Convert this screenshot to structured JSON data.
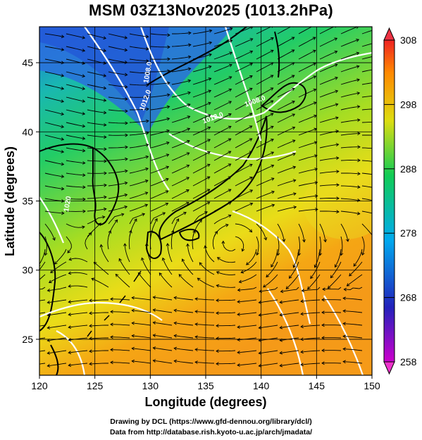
{
  "title": "MSM 03Z13Nov2025 (1013.2hPa)",
  "x_axis": {
    "label": "Longitude (degrees)",
    "ticks": [
      "120",
      "125",
      "130",
      "135",
      "140",
      "145",
      "150"
    ],
    "range": [
      120,
      150
    ]
  },
  "y_axis": {
    "label": "Latitude  (degrees)",
    "ticks": [
      "25",
      "30",
      "35",
      "40",
      "45"
    ],
    "range": [
      22.4,
      47.6
    ]
  },
  "colorbar": {
    "ticks": [
      "258",
      "268",
      "278",
      "288",
      "298",
      "308"
    ],
    "range": [
      258,
      308
    ],
    "colors": [
      "#cc00cc",
      "#1a1acc",
      "#00aaee",
      "#11cc55",
      "#dddd11",
      "#ff8800",
      "#ee2222"
    ]
  },
  "contour_labels": [
    {
      "text": "1012.0",
      "lon": 134.8,
      "lat": 40.6,
      "rot": -20
    },
    {
      "text": "1008.0",
      "lon": 138.6,
      "lat": 41.8,
      "rot": -20
    },
    {
      "text": "1012.0",
      "lon": 129.4,
      "lat": 41.5,
      "rot": -70
    },
    {
      "text": "1008.0",
      "lon": 129.8,
      "lat": 43.5,
      "rot": -80
    },
    {
      "text": "1020",
      "lon": 122.6,
      "lat": 34.2,
      "rot": -80
    }
  ],
  "credits": {
    "line1": "Drawing by DCL (https://www.gfd-dennou.org/library/dcl/)",
    "line2": "Data from http://database.rish.kyoto-u.ac.jp/arch/jmadata/"
  }
}
